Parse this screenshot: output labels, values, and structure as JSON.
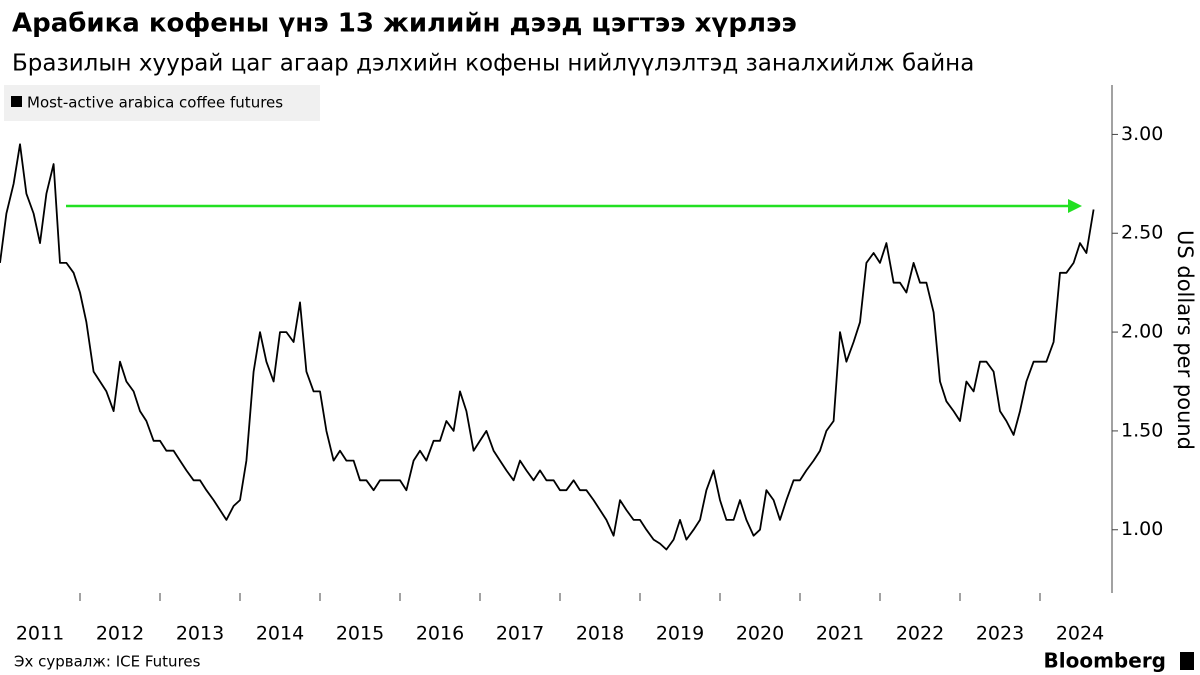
{
  "chart_data": {
    "type": "line",
    "title": "Арабика кофены үнэ 13 жилийн дээд цэгтээ хүрлээ",
    "subtitle": "Бразилын хуурай цаг агаар дэлхийн кофены нийлүүлэлтэд заналхийлж байна",
    "y_axis_label": "US dollars per pound",
    "source": "Эх сурвалж: ICE Futures",
    "brand": "Bloomberg",
    "x": [
      2011.0,
      2011.08,
      2011.17,
      2011.25,
      2011.33,
      2011.42,
      2011.5,
      2011.58,
      2011.67,
      2011.75,
      2011.83,
      2011.92,
      2012.0,
      2012.08,
      2012.17,
      2012.25,
      2012.33,
      2012.42,
      2012.5,
      2012.58,
      2012.67,
      2012.75,
      2012.83,
      2012.92,
      2013.0,
      2013.08,
      2013.17,
      2013.25,
      2013.33,
      2013.42,
      2013.5,
      2013.58,
      2013.67,
      2013.75,
      2013.83,
      2013.92,
      2014.0,
      2014.08,
      2014.17,
      2014.25,
      2014.33,
      2014.42,
      2014.5,
      2014.58,
      2014.67,
      2014.75,
      2014.83,
      2014.92,
      2015.0,
      2015.08,
      2015.17,
      2015.25,
      2015.33,
      2015.42,
      2015.5,
      2015.58,
      2015.67,
      2015.75,
      2015.83,
      2015.92,
      2016.0,
      2016.08,
      2016.17,
      2016.25,
      2016.33,
      2016.42,
      2016.5,
      2016.58,
      2016.67,
      2016.75,
      2016.83,
      2016.92,
      2017.0,
      2017.08,
      2017.17,
      2017.25,
      2017.33,
      2017.42,
      2017.5,
      2017.58,
      2017.67,
      2017.75,
      2017.83,
      2017.92,
      2018.0,
      2018.08,
      2018.17,
      2018.25,
      2018.33,
      2018.42,
      2018.5,
      2018.58,
      2018.67,
      2018.75,
      2018.83,
      2018.92,
      2019.0,
      2019.08,
      2019.17,
      2019.25,
      2019.33,
      2019.42,
      2019.5,
      2019.58,
      2019.67,
      2019.75,
      2019.83,
      2019.92,
      2020.0,
      2020.08,
      2020.17,
      2020.25,
      2020.33,
      2020.42,
      2020.5,
      2020.58,
      2020.67,
      2020.75,
      2020.83,
      2020.92,
      2021.0,
      2021.08,
      2021.17,
      2021.25,
      2021.33,
      2021.42,
      2021.5,
      2021.58,
      2021.67,
      2021.75,
      2021.83,
      2021.92,
      2022.0,
      2022.08,
      2022.17,
      2022.25,
      2022.33,
      2022.42,
      2022.5,
      2022.58,
      2022.67,
      2022.75,
      2022.83,
      2022.92,
      2023.0,
      2023.08,
      2023.17,
      2023.25,
      2023.33,
      2023.42,
      2023.5,
      2023.58,
      2023.67,
      2023.75,
      2023.83,
      2023.92,
      2024.0,
      2024.08,
      2024.17,
      2024.25,
      2024.33,
      2024.42,
      2024.5,
      2024.58,
      2024.67
    ],
    "series": [
      {
        "name": "Most-active arabica coffee futures",
        "color": "#000000",
        "values": [
          2.35,
          2.6,
          2.75,
          2.95,
          2.7,
          2.6,
          2.45,
          2.7,
          2.85,
          2.35,
          2.35,
          2.3,
          2.2,
          2.05,
          1.8,
          1.75,
          1.7,
          1.6,
          1.85,
          1.75,
          1.7,
          1.6,
          1.55,
          1.45,
          1.45,
          1.4,
          1.4,
          1.35,
          1.3,
          1.25,
          1.25,
          1.2,
          1.15,
          1.1,
          1.05,
          1.12,
          1.15,
          1.35,
          1.8,
          2.0,
          1.85,
          1.75,
          2.0,
          2.0,
          1.95,
          2.15,
          1.8,
          1.7,
          1.7,
          1.5,
          1.35,
          1.4,
          1.35,
          1.35,
          1.25,
          1.25,
          1.2,
          1.25,
          1.25,
          1.25,
          1.25,
          1.2,
          1.35,
          1.4,
          1.35,
          1.45,
          1.45,
          1.55,
          1.5,
          1.7,
          1.6,
          1.4,
          1.45,
          1.5,
          1.4,
          1.35,
          1.3,
          1.25,
          1.35,
          1.3,
          1.25,
          1.3,
          1.25,
          1.25,
          1.2,
          1.2,
          1.25,
          1.2,
          1.2,
          1.15,
          1.1,
          1.05,
          0.97,
          1.15,
          1.1,
          1.05,
          1.05,
          1.0,
          0.95,
          0.93,
          0.9,
          0.95,
          1.05,
          0.95,
          1.0,
          1.05,
          1.2,
          1.3,
          1.15,
          1.05,
          1.05,
          1.15,
          1.05,
          0.97,
          1.0,
          1.2,
          1.15,
          1.05,
          1.15,
          1.25,
          1.25,
          1.3,
          1.35,
          1.4,
          1.5,
          1.55,
          2.0,
          1.85,
          1.95,
          2.05,
          2.35,
          2.4,
          2.35,
          2.45,
          2.25,
          2.25,
          2.2,
          2.35,
          2.25,
          2.25,
          2.1,
          1.75,
          1.65,
          1.6,
          1.55,
          1.75,
          1.7,
          1.85,
          1.85,
          1.8,
          1.6,
          1.55,
          1.48,
          1.6,
          1.75,
          1.85,
          1.85,
          1.85,
          1.95,
          2.3,
          2.3,
          2.35,
          2.45,
          2.4,
          2.62
        ]
      }
    ],
    "xlim": [
      2011.0,
      2024.9
    ],
    "xticks": [
      2011,
      2012,
      2013,
      2014,
      2015,
      2016,
      2017,
      2018,
      2019,
      2020,
      2021,
      2022,
      2023,
      2024
    ],
    "ylim": [
      0.68,
      3.25
    ],
    "yticks": [
      {
        "value": 1,
        "label": "1.00"
      },
      {
        "value": 1.5,
        "label": "1.50"
      },
      {
        "value": 2,
        "label": "2.00"
      },
      {
        "value": 2.5,
        "label": "2.50"
      },
      {
        "value": 3,
        "label": "3.00"
      }
    ]
  }
}
